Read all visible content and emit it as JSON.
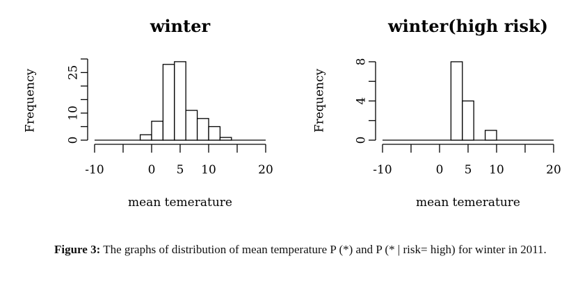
{
  "chart_data": [
    {
      "type": "bar",
      "subtype": "histogram",
      "title": "winter",
      "xlabel": "mean temerature",
      "ylabel": "Frequency",
      "bin_width": 2,
      "bins": [
        [
          -2,
          0
        ],
        [
          0,
          2
        ],
        [
          2,
          4
        ],
        [
          4,
          6
        ],
        [
          6,
          8
        ],
        [
          8,
          10
        ],
        [
          10,
          12
        ],
        [
          12,
          14
        ]
      ],
      "values": [
        2,
        7,
        28,
        29,
        11,
        8,
        5,
        1
      ],
      "xlim": [
        -10,
        20
      ],
      "ylim": [
        0,
        30
      ],
      "x_ticks": [
        -10,
        -5,
        0,
        5,
        10,
        15,
        20
      ],
      "x_tick_labels": [
        "-10",
        "",
        "0",
        "5",
        "10",
        "",
        "20"
      ],
      "y_ticks": [
        0,
        5,
        10,
        15,
        20,
        25,
        30
      ],
      "y_tick_labels": [
        "0",
        "",
        "10",
        "",
        "",
        "25",
        ""
      ],
      "grid": false
    },
    {
      "type": "bar",
      "subtype": "histogram",
      "title": "winter(high risk)",
      "xlabel": "mean temerature",
      "ylabel": "Frequency",
      "bin_width": 2,
      "bins": [
        [
          2,
          4
        ],
        [
          4,
          6
        ],
        [
          6,
          8
        ],
        [
          8,
          10
        ]
      ],
      "values": [
        8,
        4,
        0,
        1
      ],
      "xlim": [
        -10,
        20
      ],
      "ylim": [
        0,
        8
      ],
      "x_ticks": [
        -10,
        -5,
        0,
        5,
        10,
        15,
        20
      ],
      "x_tick_labels": [
        "-10",
        "",
        "0",
        "5",
        "10",
        "",
        "20"
      ],
      "y_ticks": [
        0,
        2,
        4,
        6,
        8
      ],
      "y_tick_labels": [
        "0",
        "",
        "4",
        "",
        "8"
      ],
      "grid": false
    }
  ],
  "caption": {
    "label": "Figure 3:",
    "text": " The graphs of distribution of mean temperature P (*) and P (* | risk= high) for winter in 2011."
  }
}
